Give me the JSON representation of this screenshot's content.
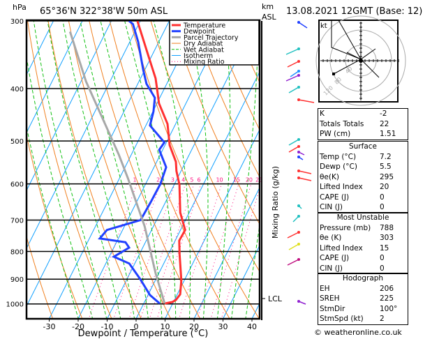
{
  "header": {
    "pressure_unit": "hPa",
    "location": "65°36'N  322°38'W  50m  ASL",
    "height_unit_line1": "km",
    "height_unit_line2": "ASL",
    "datetime": "13.08.2021  12GMT  (Base: 12)"
  },
  "chart_data": {
    "type": "line",
    "title": "",
    "xlabel": "Dewpoint / Temperature (°C)",
    "ylabel": "hPa",
    "right_axis_label": "Mixing Ratio (g/kg)",
    "lcl_label": "LCL",
    "y_scale": "log",
    "ylim": [
      1065,
      300
    ],
    "xlim_at_bottom": [
      -38,
      42
    ],
    "pressure_ticks": [
      300,
      400,
      500,
      600,
      700,
      800,
      900,
      1000
    ],
    "temperature_ticks": [
      -30,
      -20,
      -10,
      0,
      10,
      20,
      30,
      40
    ],
    "mixing_ratio_labels": [
      1,
      2,
      3,
      4,
      5,
      6,
      10,
      15,
      20,
      25
    ],
    "legend_position": "top-right",
    "legend": [
      {
        "name": "Temperature",
        "color": "#ff3030",
        "style": "thick"
      },
      {
        "name": "Dewpoint",
        "color": "#2040ff",
        "style": "thick"
      },
      {
        "name": "Parcel Trajectory",
        "color": "#a8a8a8",
        "style": "thick"
      },
      {
        "name": "Dry Adiabat",
        "color": "#f08020",
        "style": "solid"
      },
      {
        "name": "Wet Adiabat",
        "color": "#10c010",
        "style": "dashed"
      },
      {
        "name": "Isotherm",
        "color": "#10a0ff",
        "style": "solid"
      },
      {
        "name": "Mixing Ratio",
        "color": "#ff1080",
        "style": "dotted"
      }
    ],
    "series": [
      {
        "name": "Temperature",
        "pressure": [
          998,
          992,
          983,
          960,
          905,
          810,
          764,
          730,
          678,
          602,
          568,
          546,
          509,
          465,
          426,
          398,
          383,
          350,
          300
        ],
        "values": [
          7.2,
          9.6,
          10.5,
          11.0,
          9.0,
          3.9,
          1.4,
          1.6,
          -3.1,
          -8.2,
          -11.6,
          -13.4,
          -18.4,
          -22.8,
          -29.3,
          -32.8,
          -34.8,
          -40.8,
          -51.0
        ]
      },
      {
        "name": "Dewpoint",
        "pressure": [
          998,
          963,
          900,
          842,
          818,
          787,
          769,
          757,
          730,
          700,
          649,
          600,
          559,
          535,
          519,
          503,
          468,
          441,
          416,
          392,
          369,
          328,
          304,
          300
        ],
        "values": [
          5.5,
          0.7,
          -5.4,
          -11.9,
          -18.4,
          -14.7,
          -16.9,
          -26.4,
          -25.4,
          -15.5,
          -15.1,
          -14.9,
          -15.8,
          -19.0,
          -21.2,
          -20.7,
          -28.6,
          -29.8,
          -31.7,
          -37.0,
          -40.6,
          -47.1,
          -52.0,
          -53.9
        ]
      },
      {
        "name": "Parcel Trajectory",
        "pressure": [
          998,
          878,
          719,
          585,
          530,
          388,
          314
        ],
        "values": [
          7.2,
          -1.1,
          -13.0,
          -27.2,
          -34.3,
          -58.3,
          -72.4
        ]
      }
    ]
  },
  "hodograph": {
    "unit": "kt",
    "ring_labels": [
      "40",
      "80",
      "120"
    ]
  },
  "indices": {
    "rows": [
      {
        "label": "K",
        "value": "-2"
      },
      {
        "label": "Totals Totals",
        "value": "22"
      },
      {
        "label": "PW (cm)",
        "value": "1.51"
      }
    ]
  },
  "surface": {
    "title": "Surface",
    "rows": [
      {
        "label": "Temp (°C)",
        "value": "7.2"
      },
      {
        "label": "Dewp (°C)",
        "value": "5.5"
      },
      {
        "label": "θe(K)",
        "value": "295"
      },
      {
        "label": "Lifted Index",
        "value": "20"
      },
      {
        "label": "CAPE (J)",
        "value": "0"
      },
      {
        "label": "CIN (J)",
        "value": "0"
      }
    ]
  },
  "most_unstable": {
    "title": "Most Unstable",
    "rows": [
      {
        "label": "Pressure (mb)",
        "value": "788"
      },
      {
        "label": "θe (K)",
        "value": "303"
      },
      {
        "label": "Lifted Index",
        "value": "15"
      },
      {
        "label": "CAPE (J)",
        "value": "0"
      },
      {
        "label": "CIN (J)",
        "value": "0"
      }
    ]
  },
  "hodograph_table": {
    "title": "Hodograph",
    "rows": [
      {
        "label": "EH",
        "value": "206"
      },
      {
        "label": "SREH",
        "value": "225"
      },
      {
        "label": "StmDir",
        "value": "100°"
      },
      {
        "label": "StmSpd (kt)",
        "value": "2"
      }
    ]
  },
  "footer": {
    "copyright": "© weatheronline.co.uk"
  }
}
